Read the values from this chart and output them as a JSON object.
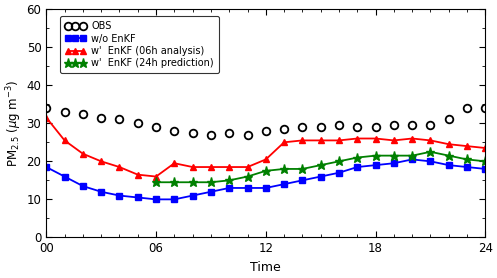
{
  "time": [
    0,
    1,
    2,
    3,
    4,
    5,
    6,
    7,
    8,
    9,
    10,
    11,
    12,
    13,
    14,
    15,
    16,
    17,
    18,
    19,
    20,
    21,
    22,
    23,
    24
  ],
  "obs": [
    34,
    33,
    32.5,
    31.5,
    31,
    30,
    29,
    28,
    27.5,
    27,
    27.5,
    27,
    28,
    28.5,
    29,
    29,
    29.5,
    29,
    29,
    29.5,
    29.5,
    29.5,
    31,
    34,
    34
  ],
  "wo_enkf": [
    18.5,
    16,
    13.5,
    12,
    11,
    10.5,
    10,
    10,
    11,
    12,
    13,
    13,
    13,
    14,
    15,
    16,
    17,
    18.5,
    19,
    19.5,
    20.5,
    20,
    19,
    18.5,
    18
  ],
  "w_enkf_06h": [
    31.5,
    25.5,
    22,
    20,
    18.5,
    16.5,
    16,
    19.5,
    18.5,
    18.5,
    18.5,
    18.5,
    20.5,
    25,
    25.5,
    25.5,
    25.5,
    26,
    26,
    25.5,
    26,
    25.5,
    24.5,
    24,
    23.5
  ],
  "w_enkf_24h": [
    null,
    null,
    null,
    null,
    null,
    null,
    14.5,
    14.5,
    14.5,
    14.5,
    15,
    16,
    17.5,
    18,
    18,
    19,
    20,
    21,
    21.5,
    21.5,
    21.5,
    22.5,
    21.5,
    20.5,
    20
  ],
  "xlim": [
    0,
    24
  ],
  "ylim": [
    0,
    60
  ],
  "xticks": [
    0,
    6,
    12,
    18,
    24
  ],
  "xticklabels": [
    "00",
    "06",
    "12",
    "18",
    "24"
  ],
  "yticks": [
    0,
    10,
    20,
    30,
    40,
    50,
    60
  ],
  "xlabel": "Time",
  "ylabel": "PM$_{2.5}$ ($\\mu$g m$^{-3}$)",
  "legend_labels": [
    "OBS",
    "w/o EnKF",
    "w'  EnKF (06h analysis)",
    "w'  EnKF (24h prediction)"
  ],
  "obs_color": "#000000",
  "wo_enkf_color": "#0000ff",
  "w_enkf_06h_color": "#ff0000",
  "w_enkf_24h_color": "#008000",
  "bg_color": "#ffffff",
  "linewidth": 1.3,
  "markersize": 4.5
}
